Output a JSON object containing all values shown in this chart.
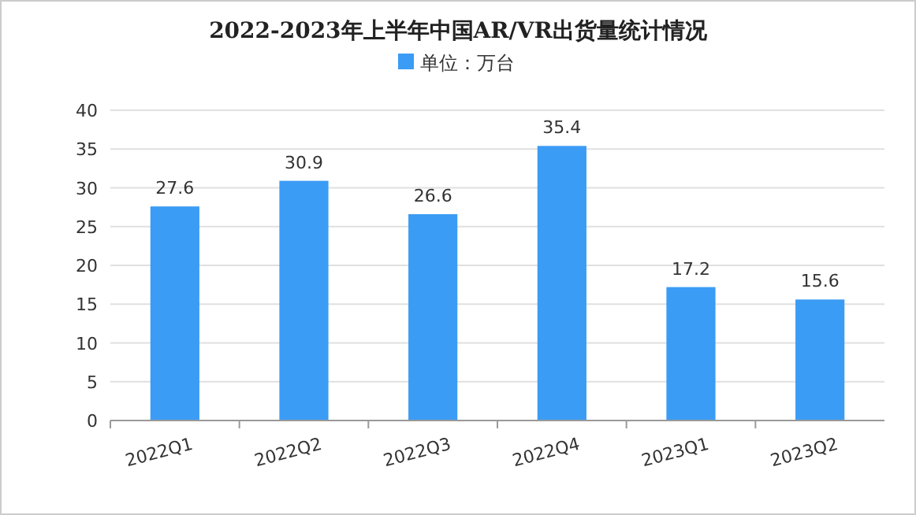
{
  "chart_data": {
    "type": "bar",
    "title": "2022-2023年上半年中国AR/VR出货量统计情况",
    "categories": [
      "2022Q1",
      "2022Q2",
      "2022Q3",
      "2022Q4",
      "2023Q1",
      "2023Q2"
    ],
    "series": [
      {
        "name": "单位：万台",
        "color": "#3b9cf5",
        "values": [
          27.6,
          30.9,
          26.6,
          35.4,
          17.2,
          15.6
        ]
      }
    ],
    "ylim": [
      0,
      40
    ],
    "yticks": [
      0,
      5,
      10,
      15,
      20,
      25,
      30,
      35,
      40
    ],
    "grid": "y",
    "legend": "top",
    "data_labels": true
  }
}
